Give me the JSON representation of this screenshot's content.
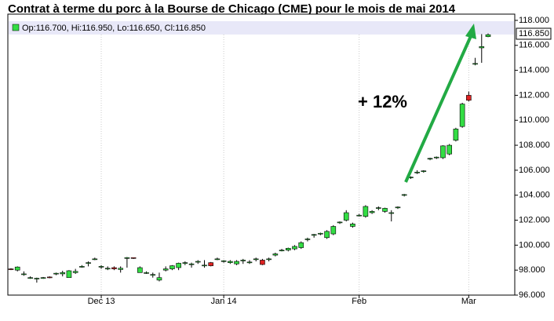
{
  "chart_data": {
    "type": "candlestick",
    "title": "Contrat à terme du porc à la Bourse de Chicago (CME) pour le mois de mai 2014",
    "legend_text": "Op:116.700, Hi:116.950, Lo:116.650, Cl:116.850",
    "last_label": "116.850",
    "annotation": "+ 12%",
    "up_color": "#33dd44",
    "down_color": "#dd2222",
    "annotation_color": "#22aa44",
    "x": [
      null,
      null,
      null,
      null,
      null,
      null,
      null,
      null,
      null,
      null,
      null,
      null,
      null,
      null,
      "Dec 13",
      null,
      null,
      null,
      null,
      null,
      null,
      null,
      null,
      null,
      null,
      null,
      null,
      null,
      null,
      null,
      null,
      null,
      null,
      "Jan 14",
      null,
      null,
      null,
      null,
      null,
      null,
      null,
      null,
      null,
      null,
      null,
      null,
      null,
      null,
      null,
      null,
      null,
      null,
      null,
      null,
      "Feb",
      null,
      null,
      null,
      null,
      null,
      null,
      null,
      null,
      null,
      null,
      null,
      null,
      null,
      null,
      null,
      null,
      "Mar",
      null,
      null,
      null
    ],
    "open": [
      98.1,
      98.0,
      97.7,
      97.4,
      97.35,
      97.4,
      97.45,
      97.7,
      97.7,
      97.4,
      97.8,
      98.3,
      98.6,
      98.9,
      98.3,
      98.1,
      98.2,
      98.05,
      99.0,
      99.0,
      97.8,
      97.8,
      97.6,
      97.2,
      98.0,
      98.1,
      98.2,
      98.6,
      98.5,
      98.7,
      98.4,
      98.6,
      98.9,
      98.7,
      98.6,
      98.5,
      98.8,
      98.6,
      98.9,
      98.8,
      98.9,
      99.2,
      99.6,
      99.6,
      99.7,
      99.8,
      100.5,
      100.8,
      100.9,
      100.6,
      100.9,
      101.8,
      102.0,
      101.5,
      102.4,
      102.3,
      102.6,
      103.0,
      102.7,
      102.6,
      103.0,
      104.0,
      105.4,
      105.8,
      105.9,
      106.9,
      107.0,
      107.0,
      107.3,
      108.4,
      109.5,
      112.0,
      114.5,
      115.8,
      116.7
    ],
    "high": [
      98.15,
      98.3,
      97.9,
      97.5,
      97.4,
      97.45,
      97.5,
      97.8,
      97.95,
      98.0,
      98.1,
      98.4,
      98.7,
      99.0,
      98.4,
      98.3,
      98.3,
      98.3,
      99.05,
      99.0,
      98.3,
      97.9,
      97.8,
      97.8,
      98.3,
      98.4,
      98.6,
      98.7,
      98.6,
      98.8,
      98.8,
      98.65,
      99.0,
      98.8,
      98.8,
      98.8,
      98.9,
      98.8,
      99.0,
      98.9,
      99.0,
      99.4,
      99.7,
      99.8,
      100.0,
      100.3,
      100.6,
      100.9,
      101.0,
      101.2,
      101.6,
      101.9,
      102.8,
      101.8,
      102.5,
      103.2,
      102.8,
      103.1,
      103.0,
      102.8,
      103.1,
      104.1,
      105.5,
      106.0,
      106.0,
      107.0,
      107.1,
      108.0,
      108.1,
      109.4,
      111.4,
      112.3,
      115.0,
      116.9,
      116.95
    ],
    "low": [
      98.0,
      97.9,
      97.55,
      97.3,
      97.0,
      97.3,
      97.35,
      97.6,
      97.5,
      97.4,
      97.7,
      98.2,
      98.3,
      98.8,
      98.1,
      98.0,
      98.0,
      97.8,
      98.2,
      98.9,
      97.8,
      97.7,
      97.4,
      97.1,
      97.9,
      98.0,
      98.0,
      98.4,
      98.2,
      98.5,
      98.2,
      98.3,
      98.8,
      98.6,
      98.5,
      98.4,
      98.5,
      98.5,
      98.7,
      98.4,
      98.7,
      99.1,
      99.5,
      99.5,
      99.6,
      99.7,
      100.3,
      100.6,
      100.8,
      100.5,
      100.8,
      101.7,
      101.9,
      101.4,
      102.3,
      102.2,
      102.5,
      102.8,
      102.6,
      101.9,
      102.9,
      103.9,
      105.3,
      105.7,
      105.8,
      106.8,
      106.9,
      106.9,
      107.2,
      108.3,
      109.4,
      111.5,
      114.4,
      114.6,
      116.65
    ],
    "close": [
      98.05,
      98.25,
      97.7,
      97.4,
      97.35,
      97.4,
      97.4,
      97.75,
      97.8,
      97.95,
      97.9,
      98.3,
      98.6,
      98.9,
      98.3,
      98.15,
      98.1,
      98.15,
      99.0,
      98.95,
      98.2,
      97.8,
      97.65,
      97.4,
      98.1,
      98.35,
      98.55,
      98.6,
      98.5,
      98.7,
      98.4,
      98.35,
      98.9,
      98.75,
      98.7,
      98.7,
      98.8,
      98.65,
      98.9,
      98.45,
      98.9,
      99.3,
      99.6,
      99.75,
      99.9,
      100.2,
      100.5,
      100.85,
      100.95,
      101.1,
      101.5,
      101.85,
      102.6,
      101.7,
      102.4,
      103.1,
      102.7,
      103.0,
      102.95,
      102.6,
      103.05,
      104.05,
      105.45,
      105.85,
      105.95,
      106.95,
      107.05,
      107.95,
      108.0,
      109.3,
      111.3,
      111.6,
      114.55,
      115.9,
      116.85
    ],
    "ylim": [
      96,
      118.5
    ],
    "yticks": [
      {
        "value": 96,
        "label": "96.000"
      },
      {
        "value": 98,
        "label": "98.000"
      },
      {
        "value": 100,
        "label": "100.000"
      },
      {
        "value": 102,
        "label": "102.000"
      },
      {
        "value": 104,
        "label": "104.000"
      },
      {
        "value": 106,
        "label": "106.000"
      },
      {
        "value": 108,
        "label": "108.000"
      },
      {
        "value": 110,
        "label": "110.000"
      },
      {
        "value": 112,
        "label": "112.000"
      },
      {
        "value": 114,
        "label": "114.000"
      },
      {
        "value": 116,
        "label": "116.000"
      },
      {
        "value": 118,
        "label": "118.000"
      }
    ]
  }
}
